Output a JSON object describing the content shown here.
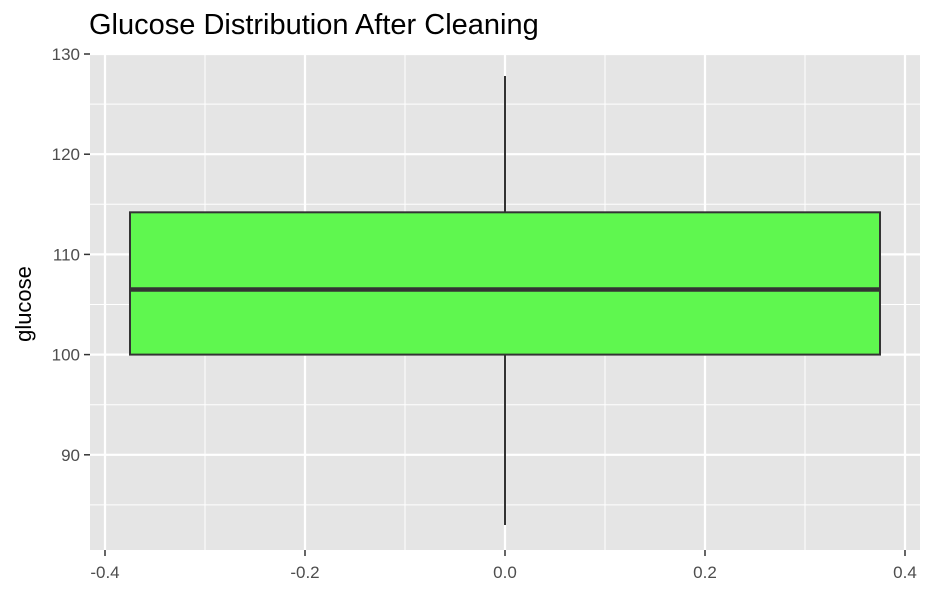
{
  "chart_data": {
    "type": "boxplot",
    "title": "Glucose Distribution After Cleaning",
    "xlabel": "",
    "ylabel": "glucose",
    "xlim": [
      -0.415,
      0.415
    ],
    "ylim": [
      80.5,
      130
    ],
    "x_ticks": [
      -0.4,
      -0.2,
      0.0,
      0.2,
      0.4
    ],
    "x_tick_labels": [
      "-0.4",
      "-0.2",
      "0.0",
      "0.2",
      "0.4"
    ],
    "y_ticks": [
      90,
      100,
      110,
      120,
      130
    ],
    "y_tick_labels": [
      "90",
      "100",
      "110",
      "120",
      "130"
    ],
    "grid": true,
    "box": {
      "x_center": 0.0,
      "x_left": -0.375,
      "x_right": 0.375,
      "whisker_low": 83,
      "q1": 100,
      "median": 106.5,
      "q3": 114.2,
      "whisker_high": 127.8
    },
    "colors": {
      "panel_background": "#e5e5e5",
      "grid": "#ffffff",
      "box_fill": "#5ff74f",
      "box_outline": "#333333",
      "axis_text": "#4d4d4d",
      "tick": "#333333"
    }
  }
}
